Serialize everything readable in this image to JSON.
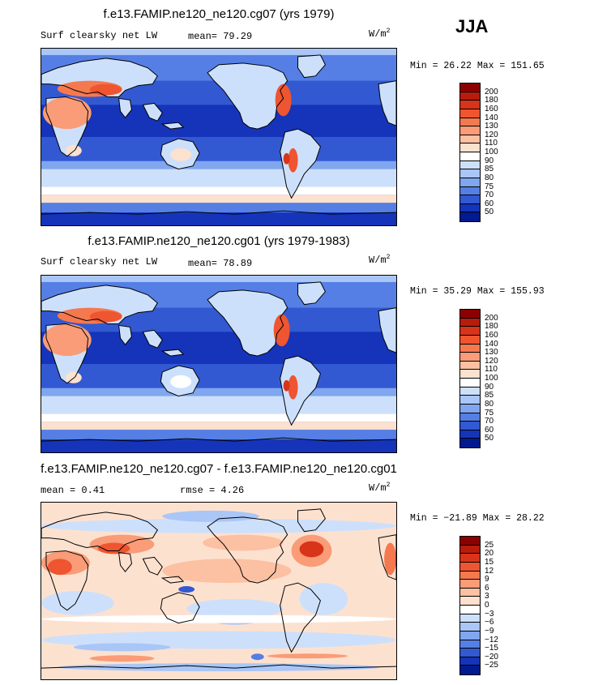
{
  "season": "JJA",
  "panels": [
    {
      "title": "f.e13.FAMIP.ne120_ne120.cg07 (yrs 1979)",
      "left_text": "Surf clearsky net LW",
      "mean_text": "mean=  79.29",
      "units_base": "W/m",
      "units_exp": "2",
      "minmax": "Min =  26.22 Max = 151.65",
      "colorbar": {
        "labels": [
          "200",
          "180",
          "160",
          "140",
          "130",
          "120",
          "110",
          "100",
          "90",
          "85",
          "80",
          "75",
          "70",
          "60",
          "50"
        ],
        "colors": [
          "#8b0000",
          "#b81c0c",
          "#d8341a",
          "#ee5530",
          "#f5794f",
          "#f99c77",
          "#fcc0a2",
          "#fde1cf",
          "#ffffff",
          "#cde0fb",
          "#a9c6f6",
          "#7fa6ef",
          "#557fe4",
          "#3259d2",
          "#1534b9",
          "#001a8f"
        ]
      }
    },
    {
      "title": "f.e13.FAMIP.ne120_ne120.cg01 (yrs 1979-1983)",
      "left_text": "Surf clearsky net LW",
      "mean_text": "mean=  78.89",
      "units_base": "W/m",
      "units_exp": "2",
      "minmax": "Min =  35.29 Max = 155.93",
      "colorbar": {
        "labels": [
          "200",
          "180",
          "160",
          "140",
          "130",
          "120",
          "110",
          "100",
          "90",
          "85",
          "80",
          "75",
          "70",
          "60",
          "50"
        ],
        "colors": [
          "#8b0000",
          "#b81c0c",
          "#d8341a",
          "#ee5530",
          "#f5794f",
          "#f99c77",
          "#fcc0a2",
          "#fde1cf",
          "#ffffff",
          "#cde0fb",
          "#a9c6f6",
          "#7fa6ef",
          "#557fe4",
          "#3259d2",
          "#1534b9",
          "#001a8f"
        ]
      }
    },
    {
      "title": "f.e13.FAMIP.ne120_ne120.cg07 - f.e13.FAMIP.ne120_ne120.cg01",
      "left_text": "mean =   0.41",
      "mean_text": "rmse =   4.26",
      "units_base": "W/m",
      "units_exp": "2",
      "minmax": "Min = −21.89 Max =  28.22",
      "colorbar": {
        "labels": [
          "25",
          "20",
          "15",
          "12",
          "9",
          "6",
          "3",
          "0",
          "−3",
          "−6",
          "−9",
          "−12",
          "−15",
          "−20",
          "−25"
        ],
        "colors": [
          "#8b0000",
          "#b81c0c",
          "#d8341a",
          "#ee5530",
          "#f5794f",
          "#f99c77",
          "#fcc0a2",
          "#fde1cf",
          "#ffffff",
          "#cde0fb",
          "#a9c6f6",
          "#7fa6ef",
          "#557fe4",
          "#3259d2",
          "#1534b9",
          "#001a8f"
        ]
      }
    }
  ]
}
